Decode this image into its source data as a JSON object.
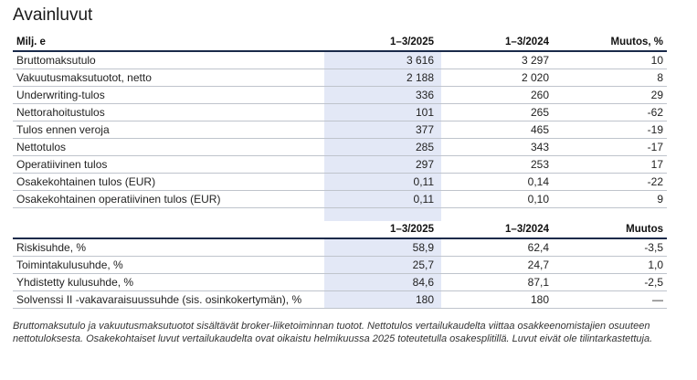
{
  "title": "Avainluvut",
  "table1": {
    "headers": [
      "Milj. e",
      "1–3/2025",
      "1–3/2024",
      "Muutos, %"
    ],
    "rows": [
      [
        "Bruttomaksutulo",
        "3 616",
        "3 297",
        "10"
      ],
      [
        "Vakuutusmaksutuotot, netto",
        "2 188",
        "2 020",
        "8"
      ],
      [
        "Underwriting-tulos",
        "336",
        "260",
        "29"
      ],
      [
        "Nettorahoitustulos",
        "101",
        "265",
        "-62"
      ],
      [
        "Tulos ennen veroja",
        "377",
        "465",
        "-19"
      ],
      [
        "Nettotulos",
        "285",
        "343",
        "-17"
      ],
      [
        "Operatiivinen tulos",
        "297",
        "253",
        "17"
      ],
      [
        "Osakekohtainen tulos (EUR)",
        "0,11",
        "0,14",
        "-22"
      ],
      [
        "Osakekohtainen operatiivinen tulos (EUR)",
        "0,11",
        "0,10",
        "9"
      ]
    ]
  },
  "table2": {
    "headers": [
      "",
      "1–3/2025",
      "1–3/2024",
      "Muutos"
    ],
    "rows": [
      [
        "Riskisuhde, %",
        "58,9",
        "62,4",
        "-3,5"
      ],
      [
        "Toimintakulusuhde, %",
        "25,7",
        "24,7",
        "1,0"
      ],
      [
        "Yhdistetty kulusuhde, %",
        "84,6",
        "87,1",
        "-2,5"
      ],
      [
        "Solvenssi II -vakavaraisuussuhde (sis. osinkokertymän), %",
        "180",
        "180",
        "—"
      ]
    ]
  },
  "footnote": "Bruttomaksutulo ja vakuutusmaksutuotot sisältävät broker-liiketoiminnan tuotot. Nettotulos vertailukaudelta viittaa osakkeenomistajien osuuteen nettotuloksesta. Osakekohtaiset luvut vertailukaudelta ovat oikaistu helmikuussa 2025 toteutetulla osakesplitillä. Luvut eivät ole tilintarkastettuja.",
  "colors": {
    "highlight": "#e3e8f6",
    "header_rule": "#1a2a4a",
    "row_rule": "#bfc4cc"
  }
}
